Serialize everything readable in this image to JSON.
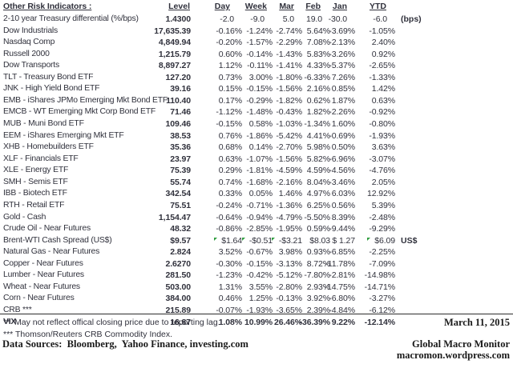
{
  "table": {
    "title": "Other Risk Indicators :",
    "columns": [
      "Level",
      "Day",
      "Week",
      "Mar",
      "Feb",
      "Jan",
      "YTD"
    ],
    "marker_color": "#2f9e3f",
    "text_color": "#30313c",
    "rows": [
      {
        "label": "2-10 year Treasury differential (%/bps)",
        "level": "1.4300",
        "values": [
          "-2.0",
          "-9.0",
          "5.0",
          "19.0",
          "-30.0",
          "-6.0"
        ],
        "note": "(bps)",
        "no_percent": true
      },
      {
        "label": "Dow Industrials",
        "level": "17,635.39",
        "values": [
          "-0.16%",
          "-1.24%",
          "-2.74%",
          "5.64%",
          "-3.69%",
          "-1.05%"
        ]
      },
      {
        "label": "Nasdaq Comp",
        "level": "4,849.94",
        "values": [
          "-0.20%",
          "-1.57%",
          "-2.29%",
          "7.08%",
          "-2.13%",
          "2.40%"
        ]
      },
      {
        "label": "Russell 2000",
        "level": "1,215.79",
        "values": [
          "0.60%",
          "-0.14%",
          "-1.43%",
          "5.83%",
          "-3.26%",
          "0.92%"
        ]
      },
      {
        "label": "Dow Transports",
        "level": "8,897.27",
        "values": [
          "1.12%",
          "-0.11%",
          "-1.41%",
          "4.33%",
          "-5.37%",
          "-2.65%"
        ]
      },
      {
        "label": "TLT - Treasury Bond ETF",
        "level": "127.20",
        "values": [
          "0.73%",
          "3.00%",
          "-1.80%",
          "-6.33%",
          "7.26%",
          "-1.33%"
        ]
      },
      {
        "label": "JNK - High Yield Bond ETF",
        "level": "39.16",
        "values": [
          "0.15%",
          "-0.15%",
          "-1.56%",
          "2.16%",
          "0.85%",
          "1.42%"
        ]
      },
      {
        "label": "EMB - iShares JPMo Emerging Mkt Bond ETF",
        "level": "110.40",
        "values": [
          "0.17%",
          "-0.29%",
          "-1.82%",
          "0.62%",
          "1.87%",
          "0.63%"
        ]
      },
      {
        "label": "EMCB - WT Emerging Mkt Corp Bond ETF",
        "level": "71.46",
        "values": [
          "-1.12%",
          "-1.48%",
          "-0.43%",
          "1.82%",
          "-2.26%",
          "-0.92%"
        ]
      },
      {
        "label": "MUB - Muni Bond ETF",
        "level": "109.46",
        "values": [
          "-0.15%",
          "0.58%",
          "-1.03%",
          "-1.34%",
          "1.60%",
          "-0.80%"
        ]
      },
      {
        "label": "EEM - iShares Emerging Mkt ETF",
        "level": "38.53",
        "values": [
          "0.76%",
          "-1.86%",
          "-5.42%",
          "4.41%",
          "-0.69%",
          "-1.93%"
        ]
      },
      {
        "label": "XHB - Homebuilders ETF",
        "level": "35.36",
        "values": [
          "0.68%",
          "0.14%",
          "-2.70%",
          "5.98%",
          "0.50%",
          "3.63%"
        ]
      },
      {
        "label": "XLF - Financials ETF",
        "level": "23.97",
        "values": [
          "0.63%",
          "-1.07%",
          "-1.56%",
          "5.82%",
          "-6.96%",
          "-3.07%"
        ]
      },
      {
        "label": "XLE - Energy ETF",
        "level": "75.39",
        "values": [
          "0.29%",
          "-1.81%",
          "-4.59%",
          "4.59%",
          "-4.56%",
          "-4.76%"
        ]
      },
      {
        "label": "SMH - Semis ETF",
        "level": "55.74",
        "values": [
          "0.74%",
          "-1.68%",
          "-2.16%",
          "8.04%",
          "-3.46%",
          "2.05%"
        ]
      },
      {
        "label": "IBB - Biotech ETF",
        "level": "342.54",
        "values": [
          "0.33%",
          "0.05%",
          "1.46%",
          "4.97%",
          "6.03%",
          "12.92%"
        ]
      },
      {
        "label": "RTH - Retail ETF",
        "level": "75.51",
        "values": [
          "-0.24%",
          "-0.71%",
          "-1.36%",
          "6.25%",
          "0.56%",
          "5.39%"
        ]
      },
      {
        "label": "Gold - Cash",
        "level": "1,154.47",
        "values": [
          "-0.64%",
          "-0.94%",
          "-4.79%",
          "-5.50%",
          "8.39%",
          "-2.48%"
        ]
      },
      {
        "label": "Crude Oil - Near Futures",
        "level": "48.32",
        "values": [
          "-0.86%",
          "-2.85%",
          "-1.95%",
          "0.59%",
          "-9.44%",
          "-9.29%"
        ]
      },
      {
        "label": "Brent-WTI Cash Spread (US$)",
        "level": "$9.57",
        "values": [
          "$1.64",
          "-$0.51",
          "-$3.21",
          "$8.03",
          "$ 1.27",
          "$6.09"
        ],
        "note": "US$",
        "markers": [
          0,
          1,
          2,
          5
        ]
      },
      {
        "label": "Natural Gas - Near Futures",
        "level": "2.824",
        "values": [
          "3.52%",
          "-0.67%",
          "3.98%",
          "0.93%",
          "-6.85%",
          "-2.25%"
        ]
      },
      {
        "label": "Copper - Near Futures",
        "level": "2.6270",
        "values": [
          "-0.30%",
          "-0.15%",
          "-3.13%",
          "8.72%",
          "-11.78%",
          "-7.09%"
        ]
      },
      {
        "label": "Lumber - Near Futures",
        "level": "281.50",
        "values": [
          "-1.23%",
          "-0.42%",
          "-5.12%",
          "-7.80%",
          "-2.81%",
          "-14.98%"
        ]
      },
      {
        "label": "Wheat - Near Futures",
        "level": "503.00",
        "values": [
          "1.31%",
          "3.55%",
          "-2.80%",
          "2.93%",
          "-14.75%",
          "-14.71%"
        ]
      },
      {
        "label": "Corn - Near Futures",
        "level": "384.00",
        "values": [
          "0.46%",
          "1.25%",
          "-0.13%",
          "3.92%",
          "-6.80%",
          "-3.27%"
        ]
      },
      {
        "label": "CRB ***",
        "level": "215.89",
        "values": [
          "-0.07%",
          "-1.93%",
          "-3.65%",
          "2.39%",
          "-4.84%",
          "-6.12%"
        ]
      },
      {
        "label": "VIX",
        "level": "16.87",
        "values": [
          "1.08%",
          "10.99%",
          "26.46%",
          "-36.39%",
          "9.22%",
          "-12.14%"
        ],
        "bold": true
      }
    ]
  },
  "footer": {
    "footnote_reporting": "**  May not reflect offical closing price due to reporting lag.",
    "footnote_crb": "*** Thomson/Reuters CRB Commodity Index.",
    "data_sources": "Data Sources:  Bloomberg,  Yahoo Finance, investing.com",
    "date": "March 11, 2015",
    "brand": "Global Macro Monitor",
    "brand_url": "macromon.wordpress.com"
  }
}
